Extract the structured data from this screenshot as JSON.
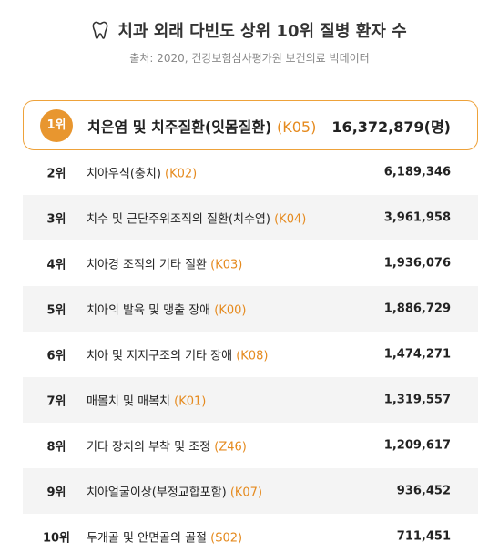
{
  "header": {
    "title": "치과 외래 다빈도 상위 10위 질병 환자 수",
    "source": "출처: 2020, 건강보험심사평가원 보건의료 빅데이터"
  },
  "table": {
    "rows": [
      {
        "rank": "1위",
        "name": "치은염 및 치주질환(잇몸질환)",
        "code": "(K05)",
        "value": "16,372,879(명)"
      },
      {
        "rank": "2위",
        "name": "치아우식(충치)",
        "code": "(K02)",
        "value": "6,189,346"
      },
      {
        "rank": "3위",
        "name": "치수 및 근단주위조직의 질환(치수염)",
        "code": "(K04)",
        "value": "3,961,958"
      },
      {
        "rank": "4위",
        "name": "치아경 조직의 기타 질환",
        "code": "(K03)",
        "value": "1,936,076"
      },
      {
        "rank": "5위",
        "name": "치아의 발육 및 맹출 장애",
        "code": "(K00)",
        "value": "1,886,729"
      },
      {
        "rank": "6위",
        "name": "치아 및 지지구조의 기타 장애",
        "code": "(K08)",
        "value": "1,474,271"
      },
      {
        "rank": "7위",
        "name": "매몰치 및 매복치",
        "code": "(K01)",
        "value": "1,319,557"
      },
      {
        "rank": "8위",
        "name": "기타 장치의 부착 및 조정",
        "code": "(Z46)",
        "value": "1,209,617"
      },
      {
        "rank": "9위",
        "name": "치아얼굴이상(부정교합포함)",
        "code": "(K07)",
        "value": "936,452"
      },
      {
        "rank": "10위",
        "name": "두개골 및 안면골의 골절",
        "code": "(S02)",
        "value": "711,451"
      }
    ]
  }
}
